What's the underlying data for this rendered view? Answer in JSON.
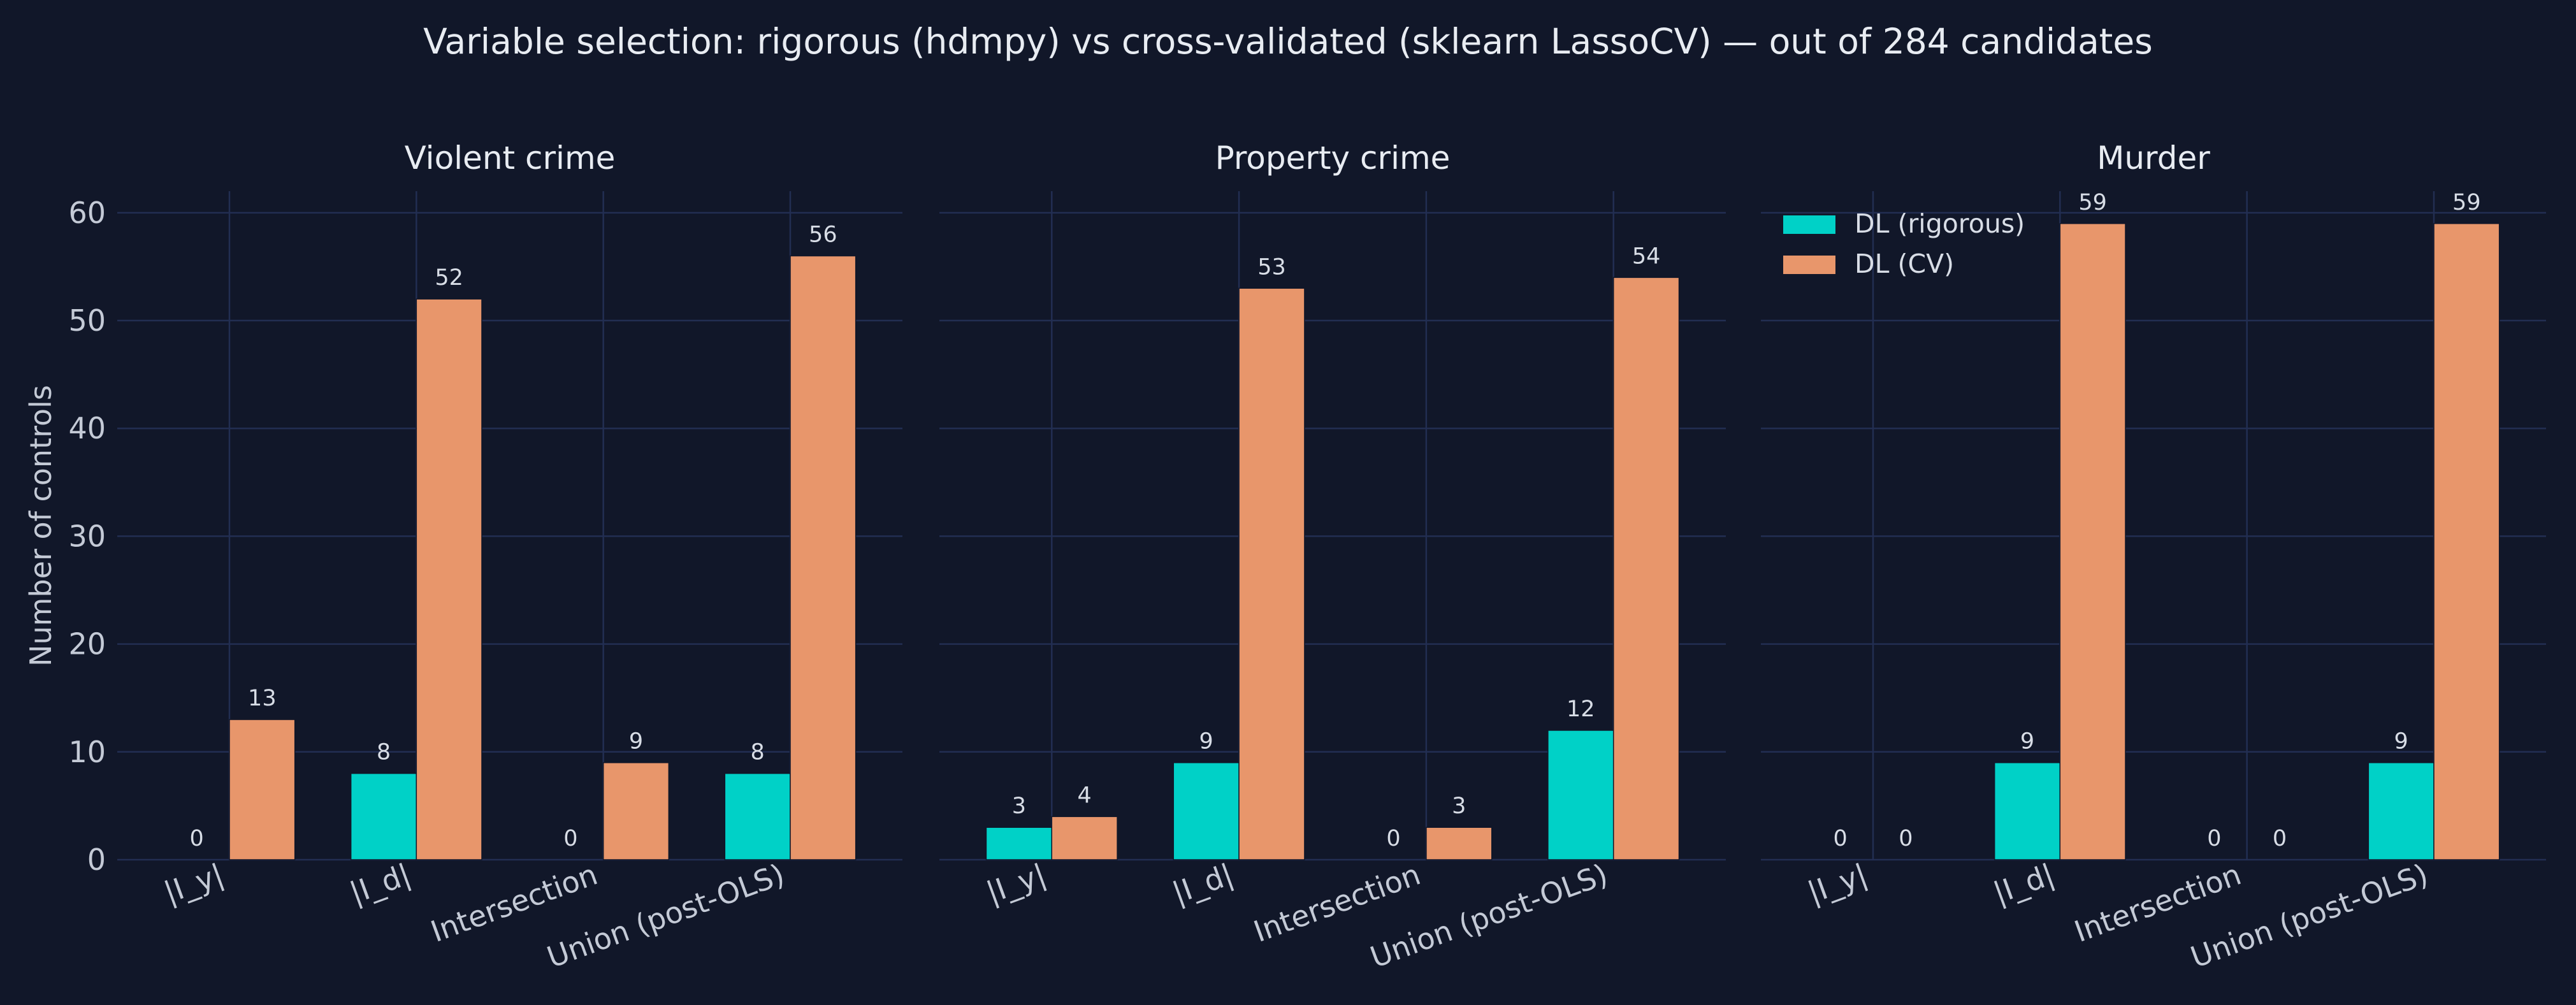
{
  "suptitle": "Variable selection: rigorous (hdmpy) vs cross-validated (sklearn LassoCV) — out of 284 candidates",
  "ylabel": "Number of controls",
  "colors": {
    "background": "#111729",
    "rigorous": "#00d1c7",
    "cv": "#e8966b",
    "grid": "#222e52"
  },
  "legend": {
    "placement": "upper-left of third panel",
    "entries": [
      "DL (rigorous)",
      "DL (CV)"
    ]
  },
  "chart_data": [
    {
      "type": "bar",
      "title": "Violent crime",
      "categories": [
        "|I_y|",
        "|I_d|",
        "Intersection",
        "Union (post-OLS)"
      ],
      "series": [
        {
          "name": "DL (rigorous)",
          "values": [
            0,
            8,
            0,
            8
          ]
        },
        {
          "name": "DL (CV)",
          "values": [
            13,
            52,
            9,
            56
          ]
        }
      ],
      "ylim": [
        0,
        62
      ],
      "yticks": [
        0,
        10,
        20,
        30,
        40,
        50,
        60
      ],
      "grid": true
    },
    {
      "type": "bar",
      "title": "Property crime",
      "categories": [
        "|I_y|",
        "|I_d|",
        "Intersection",
        "Union (post-OLS)"
      ],
      "series": [
        {
          "name": "DL (rigorous)",
          "values": [
            3,
            9,
            0,
            12
          ]
        },
        {
          "name": "DL (CV)",
          "values": [
            4,
            53,
            3,
            54
          ]
        }
      ],
      "ylim": [
        0,
        62
      ],
      "yticks": [
        0,
        10,
        20,
        30,
        40,
        50,
        60
      ],
      "grid": true
    },
    {
      "type": "bar",
      "title": "Murder",
      "categories": [
        "|I_y|",
        "|I_d|",
        "Intersection",
        "Union (post-OLS)"
      ],
      "series": [
        {
          "name": "DL (rigorous)",
          "values": [
            0,
            9,
            0,
            9
          ]
        },
        {
          "name": "DL (CV)",
          "values": [
            0,
            59,
            0,
            59
          ]
        }
      ],
      "ylim": [
        0,
        62
      ],
      "yticks": [
        0,
        10,
        20,
        30,
        40,
        50,
        60
      ],
      "grid": true
    }
  ]
}
